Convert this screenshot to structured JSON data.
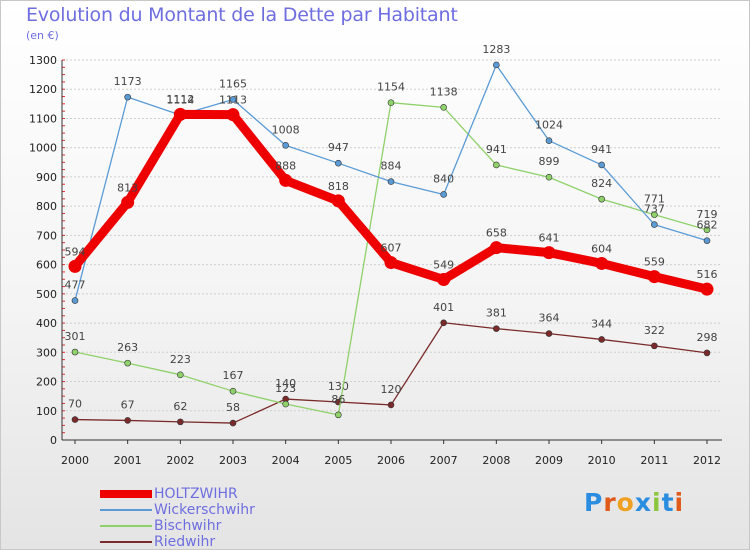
{
  "header": {
    "title": "Evolution du Montant de la Dette par Habitant",
    "unit": "(en €)"
  },
  "logo": {
    "text": "Proxiti",
    "letters": [
      "P",
      "r",
      "o",
      "x",
      "i",
      "t",
      "i"
    ],
    "colors": [
      "#2a8de0",
      "#e05a1a",
      "#f0a020",
      "#2a8de0",
      "#8cc63f",
      "#2a8de0",
      "#e05a1a"
    ]
  },
  "chart_data": {
    "type": "line",
    "title": "Evolution du Montant de la Dette par Habitant",
    "subtitle": "(en €)",
    "xlabel": "",
    "ylabel": "",
    "x": [
      "2000",
      "2001",
      "2002",
      "2003",
      "2004",
      "2005",
      "2006",
      "2007",
      "2008",
      "2009",
      "2010",
      "2011",
      "2012"
    ],
    "ylim": [
      0,
      1300
    ],
    "yticks": [
      0,
      100,
      200,
      300,
      400,
      500,
      600,
      700,
      800,
      900,
      1000,
      1100,
      1200,
      1300
    ],
    "grid": "horizontal",
    "legend_position": "bottom-left",
    "series": [
      {
        "name": "HOLTZWIHR",
        "color": "#ee0000",
        "values": [
          594,
          813,
          1114,
          1113,
          888,
          818,
          607,
          549,
          658,
          641,
          604,
          559,
          516
        ],
        "labels": [
          "594",
          "813",
          "1114",
          "1113",
          "888",
          "818",
          "607",
          "549",
          "658",
          "641",
          "604",
          "559",
          "516"
        ]
      },
      {
        "name": "Wickerschwihr",
        "color": "#5b9bd5",
        "values": [
          477,
          1173,
          1112,
          1165,
          1008,
          947,
          884,
          840,
          1283,
          1024,
          941,
          737,
          682
        ],
        "labels": [
          "477",
          "1173",
          "1112",
          "1165",
          "1008",
          "947",
          "884",
          "840",
          "1283",
          "1024",
          "941",
          "737",
          "682"
        ]
      },
      {
        "name": "Bischwihr",
        "color": "#8fd16a",
        "values": [
          301,
          263,
          223,
          167,
          123,
          86,
          1154,
          1138,
          941,
          899,
          824,
          771,
          719
        ],
        "labels": [
          "301",
          "263",
          "223",
          "167",
          "123",
          "86",
          "1154",
          "1138",
          "941",
          "899",
          "824",
          "771",
          "719"
        ]
      },
      {
        "name": "Riedwihr",
        "color": "#7a2a2a",
        "values": [
          70,
          67,
          62,
          58,
          140,
          130,
          120,
          401,
          381,
          364,
          344,
          322,
          298
        ],
        "labels": [
          "70",
          "67",
          "62",
          "58",
          "140",
          "130",
          "120",
          "401",
          "381",
          "364",
          "344",
          "322",
          "298"
        ]
      }
    ]
  }
}
